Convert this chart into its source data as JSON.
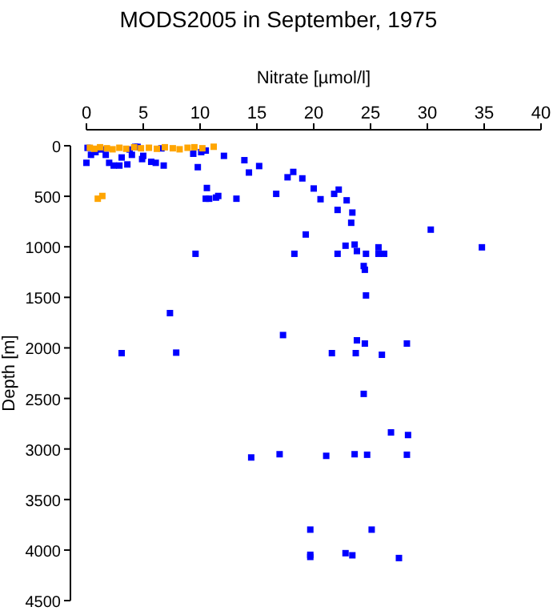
{
  "chart_data": {
    "type": "scatter",
    "title": "MODS2005 in September, 1975",
    "xlabel": "Nitrate [µmol/l]",
    "ylabel": "Depth [m]",
    "xlim": [
      0,
      40
    ],
    "xticks": [
      0,
      5,
      10,
      15,
      20,
      25,
      30,
      35,
      40
    ],
    "ylim": [
      4500,
      0
    ],
    "yticks": [
      0,
      500,
      1000,
      1500,
      2000,
      2500,
      3000,
      3500,
      4000,
      4500
    ],
    "marker": "square",
    "grid": false,
    "series": [
      {
        "color": "#0000ff",
        "x": [
          0,
          0.1,
          0.4,
          0.8,
          1.3,
          1.7,
          2.0,
          2.4,
          2.9,
          3.1,
          3.6,
          3.8,
          4.0,
          4.3,
          4.5,
          4.9,
          5.0,
          5.7,
          6.1,
          6.8,
          6.6,
          9.4,
          9.8,
          10.1,
          10.5,
          10.6,
          10.5,
          10.8,
          11.4,
          11.6,
          12.1,
          13.2,
          13.9,
          14.3,
          15.2,
          16.7,
          17.7,
          18.2,
          19.0,
          19.3,
          20.0,
          20.6,
          21.8,
          22.2,
          22.1,
          22.9,
          23.4,
          23.3,
          22.8,
          23.6,
          23.8,
          24.6,
          25.7,
          25.7,
          26.2,
          30.3,
          34.8,
          9.6,
          18.3,
          22.1,
          24.4,
          24.5,
          24.6,
          7.35,
          3.1,
          7.9,
          17.3,
          21.6,
          23.7,
          23.8,
          24.5,
          26.0,
          28.2,
          24.4,
          26.8,
          28.3,
          14.5,
          17.0,
          21.1,
          23.6,
          24.7,
          28.2,
          19.7,
          25.1,
          19.7,
          19.7,
          22.8,
          23.4,
          27.5
        ],
        "values": [
          169,
          21,
          90,
          63,
          37,
          90,
          169,
          196,
          196,
          116,
          185,
          37,
          90,
          11,
          11,
          132,
          100,
          159,
          169,
          196,
          26,
          79,
          212,
          63,
          48,
          418,
          524,
          524,
          513,
          497,
          100,
          524,
          143,
          265,
          201,
          476,
          312,
          259,
          323,
          878,
          423,
          529,
          476,
          434,
          635,
          540,
          661,
          762,
          989,
          978,
          1042,
          1069,
          1005,
          1069,
          1069,
          830,
          1005,
          1069,
          1069,
          1069,
          1190,
          1227,
          1481,
          1656,
          2052,
          2047,
          1873,
          2052,
          2052,
          1925,
          1957,
          2068,
          1957,
          2455,
          2836,
          2862,
          3084,
          3052,
          3068,
          3052,
          3057,
          3057,
          3798,
          3798,
          4047,
          4068,
          4031,
          4052,
          4079
        ]
      },
      {
        "color": "#ffa500",
        "x": [
          0.3,
          0.7,
          1.2,
          1.8,
          2.3,
          2.9,
          3.5,
          4.2,
          4.8,
          5.5,
          6.2,
          6.9,
          7.6,
          8.2,
          8.9,
          9.5,
          10.2,
          11.2,
          1.0,
          1.4
        ],
        "values": [
          20,
          30,
          15,
          25,
          35,
          20,
          30,
          15,
          25,
          20,
          30,
          15,
          25,
          35,
          20,
          15,
          25,
          10,
          524,
          497
        ]
      }
    ]
  }
}
